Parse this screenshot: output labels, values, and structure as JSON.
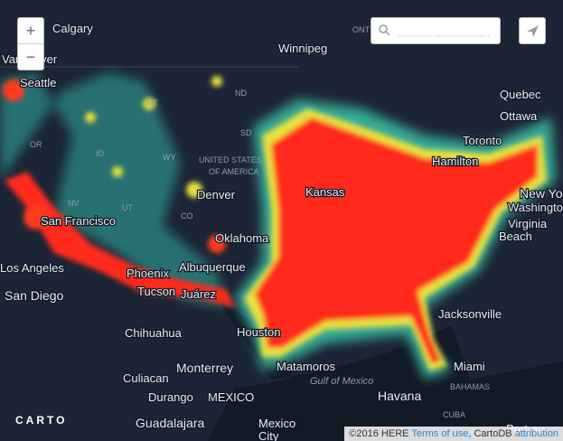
{
  "map": {
    "labels": {
      "calgary": "Calgary",
      "winnipeg": "Winnipeg",
      "ont": "ONT",
      "vancouver": "Vancouver",
      "seattle": "Seattle",
      "mt": "MT",
      "nd": "ND",
      "or": "OR",
      "sd": "SD",
      "id": "ID",
      "wy": "WY",
      "usa1": "UNITED STATES",
      "usa2": "OF AMERICA",
      "nv": "NV",
      "sf": "San Francisco",
      "kansas": "Kansas",
      "denver": "Denver",
      "ut": "UT",
      "co": "CO",
      "oklahoma": "Oklahoma",
      "albuquerque": "Albuquerque",
      "la": "Los Angeles",
      "phoenix": "Phoenix",
      "sandiego": "San Diego",
      "tucson": "Tucson",
      "juarez": "Juárez",
      "chihuahua": "Chihuahua",
      "houston": "Houston",
      "matamoros": "Matamoros",
      "monterrey": "Monterrey",
      "culiacan": "Culiacan",
      "durango": "Durango",
      "mexico": "MEXICO",
      "guadalajara": "Guadalajara",
      "mexicocity": "Mexico",
      "mexicocity2": "City",
      "gulf": "Gulf of Mexico",
      "havana": "Havana",
      "bahamas": "BAHAMAS",
      "cuba": "CUBA",
      "miami": "Miami",
      "jacksonville": "Jacksonville",
      "quebec": "Quebec",
      "ottawa": "Ottawa",
      "toronto": "Toronto",
      "hamilton": "Hamilton",
      "newyork": "New York",
      "washington": "Washington",
      "virginia": "Virginia",
      "beach": "Beach",
      "portau": "Port-au"
    }
  },
  "controls": {
    "zoom_in": "+",
    "zoom_out": "−"
  },
  "footer": {
    "logo": "CARTO",
    "copyright": "©2016 HERE",
    "terms": "Terms of use",
    "separator": ", CartoDB",
    "attribution": "attribution"
  }
}
